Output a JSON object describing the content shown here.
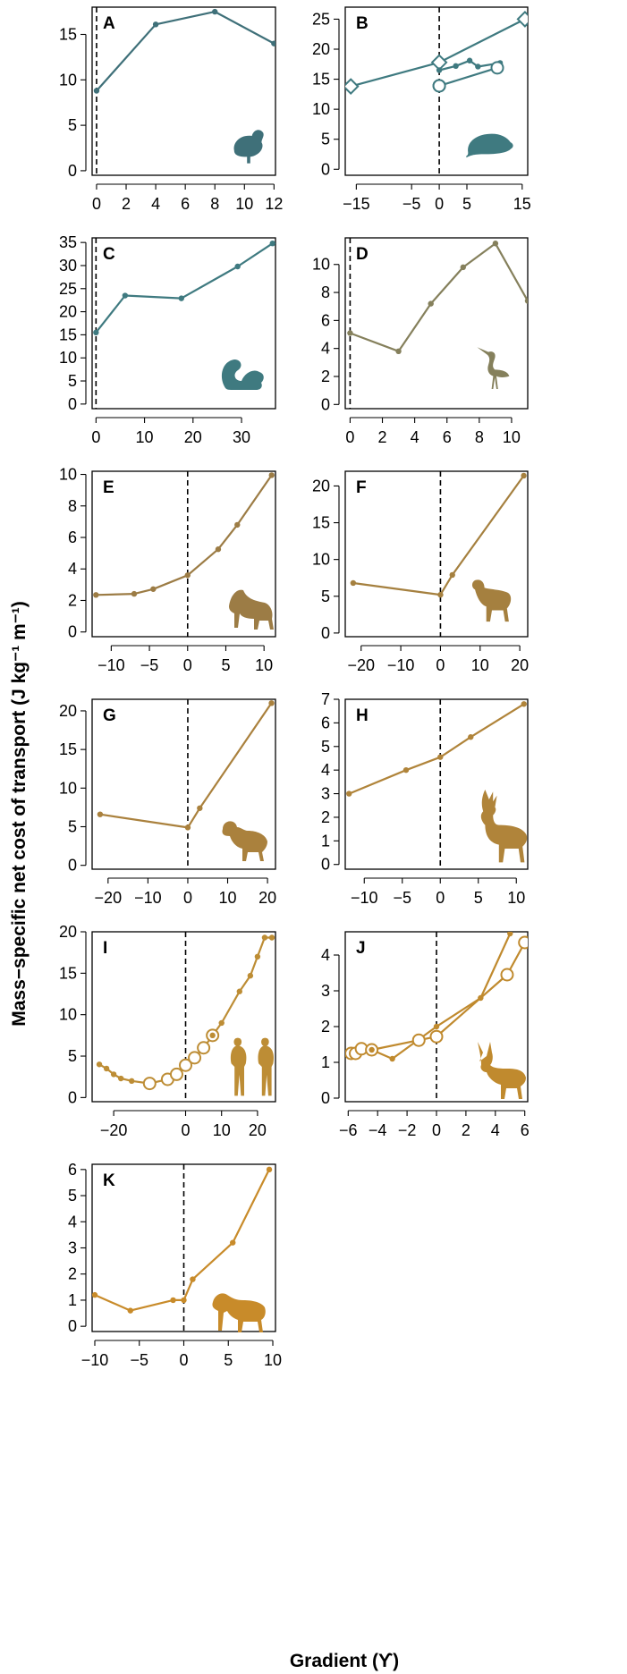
{
  "figure": {
    "ylabel": "Mass−specific net cost of transport (J kg⁻¹ m⁻¹)",
    "xlabel": "Gradient (ϒ)"
  },
  "chart_data": [
    {
      "panel": "A",
      "type": "line",
      "color": "#3f7079",
      "icon": "quail-silhouette-icon",
      "xlim": [
        -0.3,
        12.1
      ],
      "ylim": [
        -0.5,
        18
      ],
      "xticks": [
        0,
        2,
        4,
        6,
        8,
        10,
        12
      ],
      "yticks": [
        0,
        5,
        10,
        15
      ],
      "series": [
        {
          "marker": "dot",
          "x": [
            0,
            4,
            8,
            12
          ],
          "y": [
            8.8,
            16.1,
            17.5,
            14.0
          ]
        }
      ]
    },
    {
      "panel": "B",
      "type": "line",
      "color": "#3f7a80",
      "icon": "rat-silhouette-icon",
      "xlim": [
        -17,
        16
      ],
      "ylim": [
        -1,
        27
      ],
      "xticks": [
        -15,
        -5,
        0,
        5,
        15
      ],
      "yticks": [
        0,
        5,
        10,
        15,
        20,
        25
      ],
      "series": [
        {
          "marker": "diamond",
          "x": [
            -16,
            0,
            15.5
          ],
          "y": [
            13.8,
            17.8,
            25.0
          ]
        },
        {
          "marker": "dot",
          "x": [
            0,
            3,
            5.5,
            7,
            11
          ],
          "y": [
            16.5,
            17.2,
            18.1,
            17.1,
            17.7
          ]
        },
        {
          "marker": "circle",
          "x": [
            0,
            10.5,
            0
          ],
          "y": [
            13.9,
            16.9,
            13.9
          ]
        }
      ]
    },
    {
      "panel": "C",
      "type": "line",
      "color": "#3f7a80",
      "icon": "squirrel-silhouette-icon",
      "xlim": [
        -0.8,
        37
      ],
      "ylim": [
        -1,
        36
      ],
      "xticks": [
        0,
        10,
        20,
        30
      ],
      "yticks": [
        0,
        5,
        10,
        15,
        20,
        25,
        30,
        35
      ],
      "series": [
        {
          "marker": "dot",
          "x": [
            0,
            6,
            17.6,
            29.2,
            36.4
          ],
          "y": [
            15.5,
            23.5,
            22.9,
            29.8,
            34.8
          ]
        }
      ]
    },
    {
      "panel": "D",
      "type": "line",
      "color": "#85805c",
      "icon": "heron-silhouette-icon",
      "xlim": [
        -0.3,
        11
      ],
      "ylim": [
        -0.3,
        11.9
      ],
      "xticks": [
        0,
        2,
        4,
        6,
        8,
        10
      ],
      "yticks": [
        0,
        2,
        4,
        6,
        8,
        10
      ],
      "series": [
        {
          "marker": "dot",
          "x": [
            0,
            3,
            5,
            7,
            9,
            11
          ],
          "y": [
            5.1,
            3.8,
            7.2,
            9.8,
            11.5,
            7.4
          ]
        }
      ]
    },
    {
      "panel": "E",
      "type": "line",
      "color": "#9c7c45",
      "icon": "wolf-silhouette-icon",
      "xlim": [
        -12.5,
        11.5
      ],
      "ylim": [
        -0.3,
        10.2
      ],
      "xticks": [
        -10,
        -5,
        0,
        5,
        10
      ],
      "yticks": [
        0,
        2,
        4,
        6,
        8,
        10
      ],
      "series": [
        {
          "marker": "dot",
          "x": [
            -12,
            -7,
            -4.5,
            0,
            4,
            6.5,
            11
          ],
          "y": [
            2.35,
            2.42,
            2.72,
            3.6,
            5.25,
            6.8,
            9.95
          ]
        }
      ]
    },
    {
      "panel": "F",
      "type": "line",
      "color": "#a5803f",
      "icon": "goat-silhouette-icon",
      "xlim": [
        -24,
        22
      ],
      "ylim": [
        -0.5,
        22
      ],
      "xticks": [
        -20,
        -10,
        0,
        10,
        20
      ],
      "yticks": [
        0,
        5,
        10,
        15,
        20
      ],
      "series": [
        {
          "marker": "dot",
          "x": [
            -22,
            0,
            3,
            21
          ],
          "y": [
            6.8,
            5.2,
            7.9,
            21.4
          ]
        }
      ]
    },
    {
      "panel": "G",
      "type": "line",
      "color": "#aa813d",
      "icon": "bighorn-sheep-silhouette-icon",
      "xlim": [
        -24,
        22
      ],
      "ylim": [
        -0.5,
        21.5
      ],
      "xticks": [
        -20,
        -10,
        0,
        10,
        20
      ],
      "yticks": [
        0,
        5,
        10,
        15,
        20
      ],
      "series": [
        {
          "marker": "dot",
          "x": [
            -22,
            0,
            3,
            21
          ],
          "y": [
            6.6,
            4.9,
            7.4,
            21.0
          ]
        }
      ]
    },
    {
      "panel": "H",
      "type": "line",
      "color": "#b0843a",
      "icon": "deer-silhouette-icon",
      "xlim": [
        -12.5,
        11.5
      ],
      "ylim": [
        -0.2,
        7
      ],
      "xticks": [
        -10,
        -5,
        0,
        5,
        10
      ],
      "yticks": [
        0,
        1,
        2,
        3,
        4,
        5,
        6,
        7
      ],
      "series": [
        {
          "marker": "dot",
          "x": [
            -12,
            -4.5,
            0,
            4,
            11
          ],
          "y": [
            3.0,
            4.0,
            4.55,
            5.4,
            6.8
          ]
        }
      ]
    },
    {
      "panel": "I",
      "type": "line",
      "color": "#bd8d35",
      "icon": "humans-silhouette-icon",
      "xlim": [
        -26,
        25
      ],
      "ylim": [
        -0.5,
        20
      ],
      "xticks": [
        -20,
        0,
        10,
        20
      ],
      "yticks": [
        0,
        5,
        10,
        15,
        20
      ],
      "series": [
        {
          "marker": "dot",
          "x": [
            -24,
            -22,
            -20,
            -18,
            -15,
            -10
          ],
          "y": [
            4.0,
            3.5,
            2.8,
            2.3,
            2.0,
            1.7
          ]
        },
        {
          "marker": "circle",
          "x": [
            -10,
            -5,
            -2.5,
            0,
            2.5,
            5,
            7.5
          ],
          "y": [
            1.7,
            2.2,
            2.8,
            3.9,
            4.8,
            6.0,
            7.5
          ]
        },
        {
          "marker": "dot",
          "x": [
            7.5,
            10,
            15,
            18,
            20,
            22,
            24
          ],
          "y": [
            7.5,
            9.0,
            12.8,
            14.7,
            17.0,
            19.3,
            19.3
          ]
        }
      ]
    },
    {
      "panel": "J",
      "type": "line",
      "color": "#c08a2e",
      "icon": "reindeer-silhouette-icon",
      "xlim": [
        -6.2,
        6.2
      ],
      "ylim": [
        -0.1,
        4.65
      ],
      "xticks": [
        -6,
        -4,
        -2,
        0,
        2,
        4,
        6
      ],
      "yticks": [
        0,
        1,
        2,
        3,
        4
      ],
      "series": [
        {
          "marker": "circle",
          "x": [
            -5.8,
            -5.5,
            -5.1,
            -4.4,
            -1.2,
            0,
            4.8,
            6
          ],
          "y": [
            1.25,
            1.25,
            1.38,
            1.35,
            1.62,
            1.72,
            3.45,
            4.35
          ]
        },
        {
          "marker": "dot",
          "x": [
            -4.4,
            -3,
            0,
            3,
            5
          ],
          "y": [
            1.35,
            1.1,
            2.0,
            2.8,
            4.6
          ]
        }
      ]
    },
    {
      "panel": "K",
      "type": "line",
      "color": "#c88b2a",
      "icon": "horse-silhouette-icon",
      "xlim": [
        -10.3,
        10.3
      ],
      "ylim": [
        -0.2,
        6.2
      ],
      "xticks": [
        -10,
        -5,
        0,
        5,
        10
      ],
      "yticks": [
        0,
        1,
        2,
        3,
        4,
        5,
        6
      ],
      "series": [
        {
          "marker": "dot",
          "x": [
            -10,
            -6,
            -1.2,
            0,
            1,
            5.5,
            9.6
          ],
          "y": [
            1.2,
            0.6,
            1.0,
            1.0,
            1.8,
            3.2,
            6.0
          ]
        }
      ]
    }
  ]
}
